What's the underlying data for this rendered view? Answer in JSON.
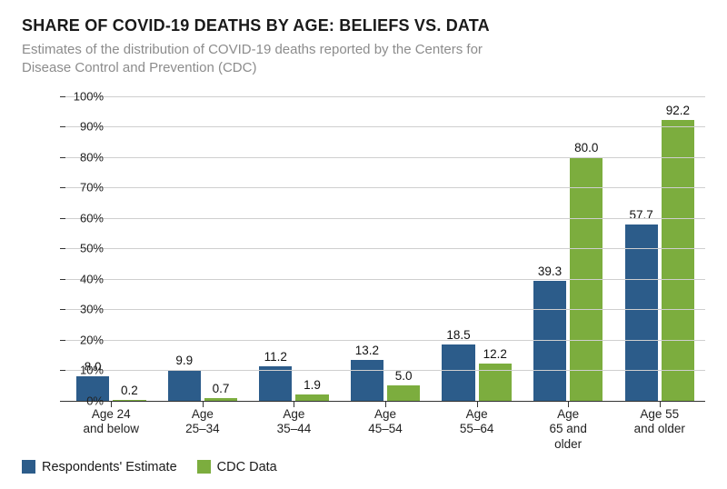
{
  "title": "SHARE OF COVID-19 DEATHS BY AGE: BELIEFS VS. DATA",
  "subtitle": "Estimates of the distribution of COVID-19 deaths reported by the Centers for Disease Control and Prevention (CDC)",
  "chart": {
    "type": "grouped-bar",
    "ylim": [
      0,
      100
    ],
    "ytick_step": 10,
    "y_suffix": "%",
    "grid_color": "#cfcfcf",
    "axis_color": "#333333",
    "background_color": "#ffffff",
    "label_fontsize": 13,
    "value_label_fontsize": 13.5,
    "series": [
      {
        "key": "estimate",
        "label": "Respondents' Estimate",
        "color": "#2c5c8a"
      },
      {
        "key": "cdc",
        "label": "CDC Data",
        "color": "#7cad3e"
      }
    ],
    "categories": [
      {
        "lines": [
          "Age 24",
          "and below"
        ],
        "estimate": 8.0,
        "cdc": 0.2
      },
      {
        "lines": [
          "Age",
          "25–34"
        ],
        "estimate": 9.9,
        "cdc": 0.7
      },
      {
        "lines": [
          "Age",
          "35–44"
        ],
        "estimate": 11.2,
        "cdc": 1.9
      },
      {
        "lines": [
          "Age",
          "45–54"
        ],
        "estimate": 13.2,
        "cdc": 5.0
      },
      {
        "lines": [
          "Age",
          "55–64"
        ],
        "estimate": 18.5,
        "cdc": 12.2
      },
      {
        "lines": [
          "Age",
          "65 and",
          "older"
        ],
        "estimate": 39.3,
        "cdc": 80.0
      },
      {
        "lines": [
          "Age 55",
          "and older"
        ],
        "estimate": 57.7,
        "cdc": 92.2
      }
    ]
  }
}
